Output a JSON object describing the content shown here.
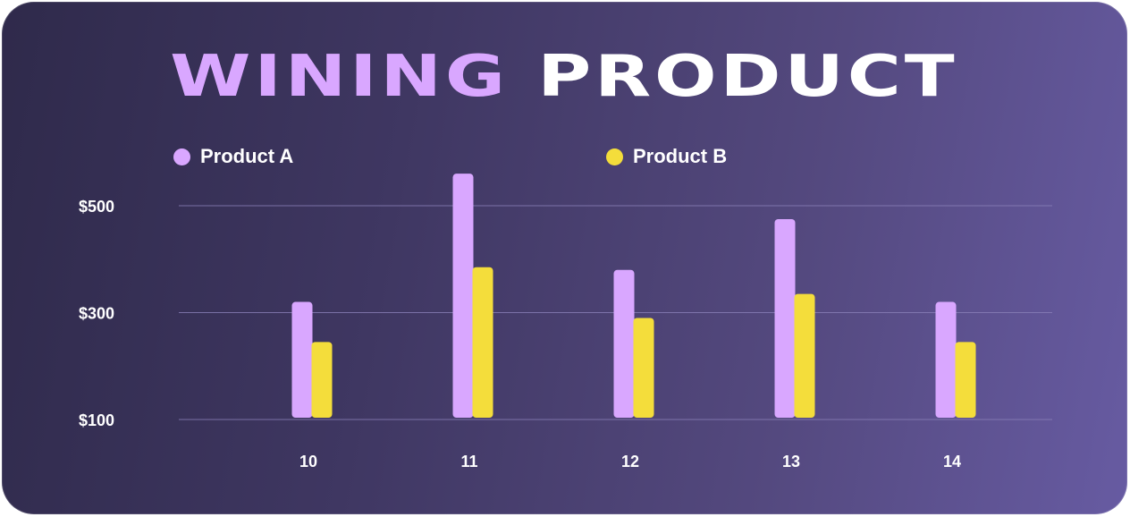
{
  "header": {
    "title_part1": "WINING",
    "title_part2": "PRODUCT"
  },
  "colors": {
    "product_a": "#d9a7ff",
    "product_b": "#f4dd3b",
    "grid": "#8a80b8"
  },
  "chart_data": {
    "type": "bar",
    "title": "WINING PRODUCT",
    "xlabel": "",
    "ylabel": "",
    "categories": [
      "10",
      "11",
      "12",
      "13",
      "14"
    ],
    "series": [
      {
        "name": "Product A",
        "values": [
          320,
          560,
          380,
          475,
          320
        ]
      },
      {
        "name": "Product B",
        "values": [
          245,
          385,
          290,
          335,
          245
        ]
      }
    ],
    "yticks": [
      {
        "value": 500,
        "label": "$500"
      },
      {
        "value": 300,
        "label": "$300"
      },
      {
        "value": 100,
        "label": "$100"
      }
    ],
    "ylim": [
      100,
      500
    ],
    "grid": true,
    "legend": "top"
  }
}
